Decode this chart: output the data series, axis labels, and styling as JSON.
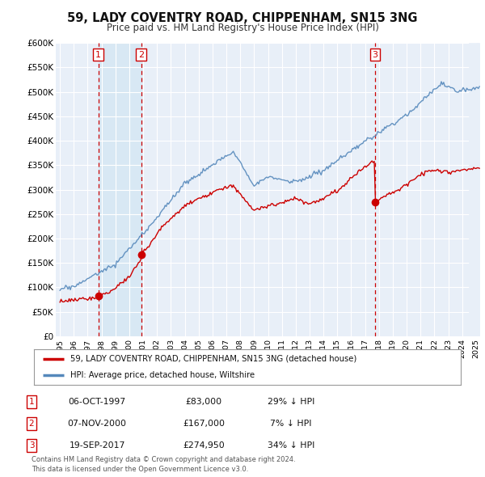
{
  "title": "59, LADY COVENTRY ROAD, CHIPPENHAM, SN15 3NG",
  "subtitle": "Price paid vs. HM Land Registry's House Price Index (HPI)",
  "sales": [
    {
      "date_num": 1997.76,
      "price": 83000,
      "label": "1"
    },
    {
      "date_num": 2000.85,
      "price": 167000,
      "label": "2"
    },
    {
      "date_num": 2017.72,
      "price": 274950,
      "label": "3"
    }
  ],
  "sale_annotations": [
    {
      "num": "1",
      "date": "06-OCT-1997",
      "price": "£83,000",
      "hpi": "29% ↓ HPI"
    },
    {
      "num": "2",
      "date": "07-NOV-2000",
      "price": "£167,000",
      "hpi": "7% ↓ HPI"
    },
    {
      "num": "3",
      "date": "19-SEP-2017",
      "price": "£274,950",
      "hpi": "34% ↓ HPI"
    }
  ],
  "legend_line1": "59, LADY COVENTRY ROAD, CHIPPENHAM, SN15 3NG (detached house)",
  "legend_line2": "HPI: Average price, detached house, Wiltshire",
  "footer": "Contains HM Land Registry data © Crown copyright and database right 2024.\nThis data is licensed under the Open Government Licence v3.0.",
  "red_color": "#cc0000",
  "blue_color": "#5588bb",
  "shade_color": "#d8e8f4",
  "background_color": "#ffffff",
  "plot_bg_color": "#e8eff8",
  "grid_color": "#ffffff",
  "dashed_color": "#cc0000",
  "ylim": [
    0,
    600000
  ],
  "yticks": [
    0,
    50000,
    100000,
    150000,
    200000,
    250000,
    300000,
    350000,
    400000,
    450000,
    500000,
    550000,
    600000
  ],
  "xlim_start": 1994.7,
  "xlim_end": 2025.3
}
